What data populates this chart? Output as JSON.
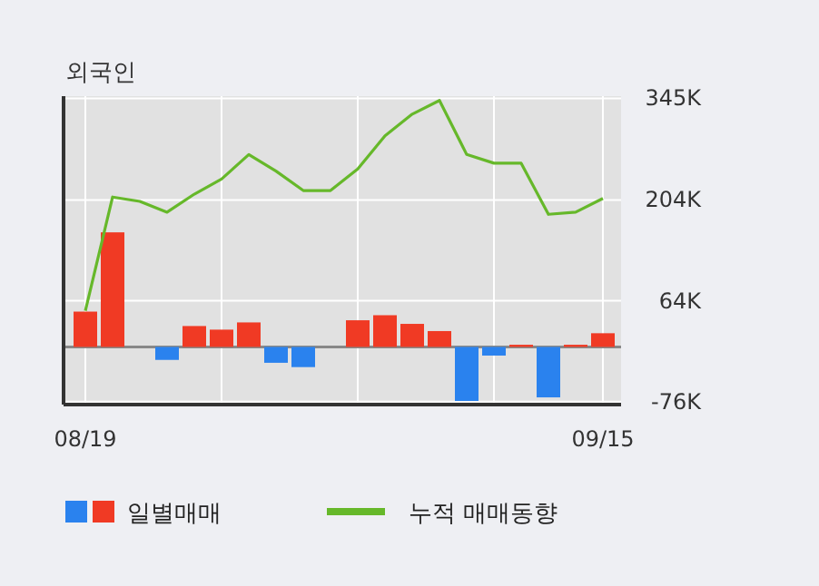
{
  "chart_data": {
    "type": "bar",
    "title": "외국인",
    "categories": [
      "08/19",
      null,
      null,
      null,
      null,
      null,
      null,
      null,
      null,
      null,
      null,
      null,
      null,
      null,
      null,
      null,
      null,
      null,
      null,
      "09/15"
    ],
    "series": [
      {
        "name": "일별매매",
        "values": [
          49000,
          159000,
          0,
          -18000,
          29000,
          24000,
          34000,
          -22000,
          -28000,
          0,
          37000,
          44000,
          32000,
          22000,
          -75000,
          -12000,
          3000,
          -70000,
          3000,
          19000
        ],
        "colors": [
          "#f03a24",
          "#f03a24",
          "#f03a24",
          "#2a82ee",
          "#f03a24",
          "#f03a24",
          "#f03a24",
          "#2a82ee",
          "#2a82ee",
          "#f03a24",
          "#f03a24",
          "#f03a24",
          "#f03a24",
          "#f03a24",
          "#2a82ee",
          "#2a82ee",
          "#f03a24",
          "#2a82ee",
          "#f03a24",
          "#f03a24"
        ]
      },
      {
        "type": "line",
        "name": "누적 매매동향",
        "color": "#66b82a",
        "values": [
          50000,
          208000,
          202000,
          187000,
          212000,
          233000,
          267000,
          244000,
          217000,
          217000,
          247000,
          293000,
          323000,
          342000,
          267000,
          255000,
          255000,
          184000,
          187000,
          206000
        ]
      }
    ],
    "ylim": [
      -80000,
      348000
    ],
    "yticks": [
      {
        "value": -76000,
        "label": "-76K"
      },
      {
        "value": 64000,
        "label": "64K"
      },
      {
        "value": 204000,
        "label": "204K"
      },
      {
        "value": 345000,
        "label": "345K"
      }
    ],
    "grid": true,
    "legend": "bottom"
  }
}
